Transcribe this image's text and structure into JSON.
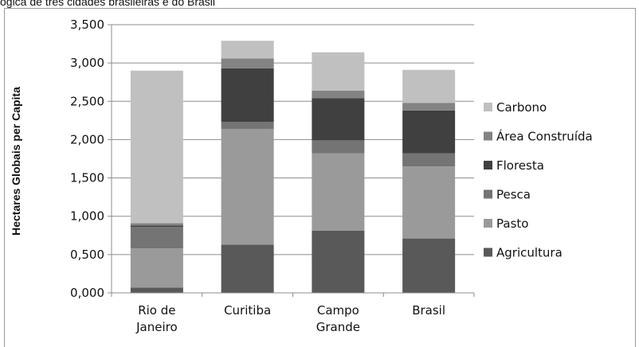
{
  "caption": "ógica de três cidades brasileiras e do Brasil",
  "chart_data": {
    "type": "bar",
    "stacked": true,
    "title": "",
    "xlabel": "",
    "ylabel": "Hectares Globais per Capita",
    "ylim": [
      0,
      3.5
    ],
    "yticks": [
      "0,000",
      "0,500",
      "1,000",
      "1,500",
      "2,000",
      "2,500",
      "3,000",
      "3,500"
    ],
    "grid": true,
    "legend_position": "right",
    "categories": [
      [
        "Rio de",
        "Janeiro"
      ],
      [
        "Curitiba"
      ],
      [
        "Campo",
        "Grande"
      ],
      [
        "Brasil"
      ]
    ],
    "series": [
      {
        "name": "Agricultura",
        "color": "#595959",
        "values": [
          0.07,
          0.63,
          0.81,
          0.71
        ]
      },
      {
        "name": "Pasto",
        "color": "#9a9a9a",
        "values": [
          0.51,
          1.51,
          1.01,
          0.94
        ]
      },
      {
        "name": "Pesca",
        "color": "#747474",
        "values": [
          0.28,
          0.09,
          0.17,
          0.17
        ]
      },
      {
        "name": "Floresta",
        "color": "#404040",
        "values": [
          0.02,
          0.7,
          0.55,
          0.56
        ]
      },
      {
        "name": "Área Construída",
        "color": "#838383",
        "values": [
          0.03,
          0.13,
          0.1,
          0.1
        ]
      },
      {
        "name": "Carbono",
        "color": "#c0c0c0",
        "values": [
          1.99,
          0.23,
          0.5,
          0.43
        ]
      }
    ]
  }
}
